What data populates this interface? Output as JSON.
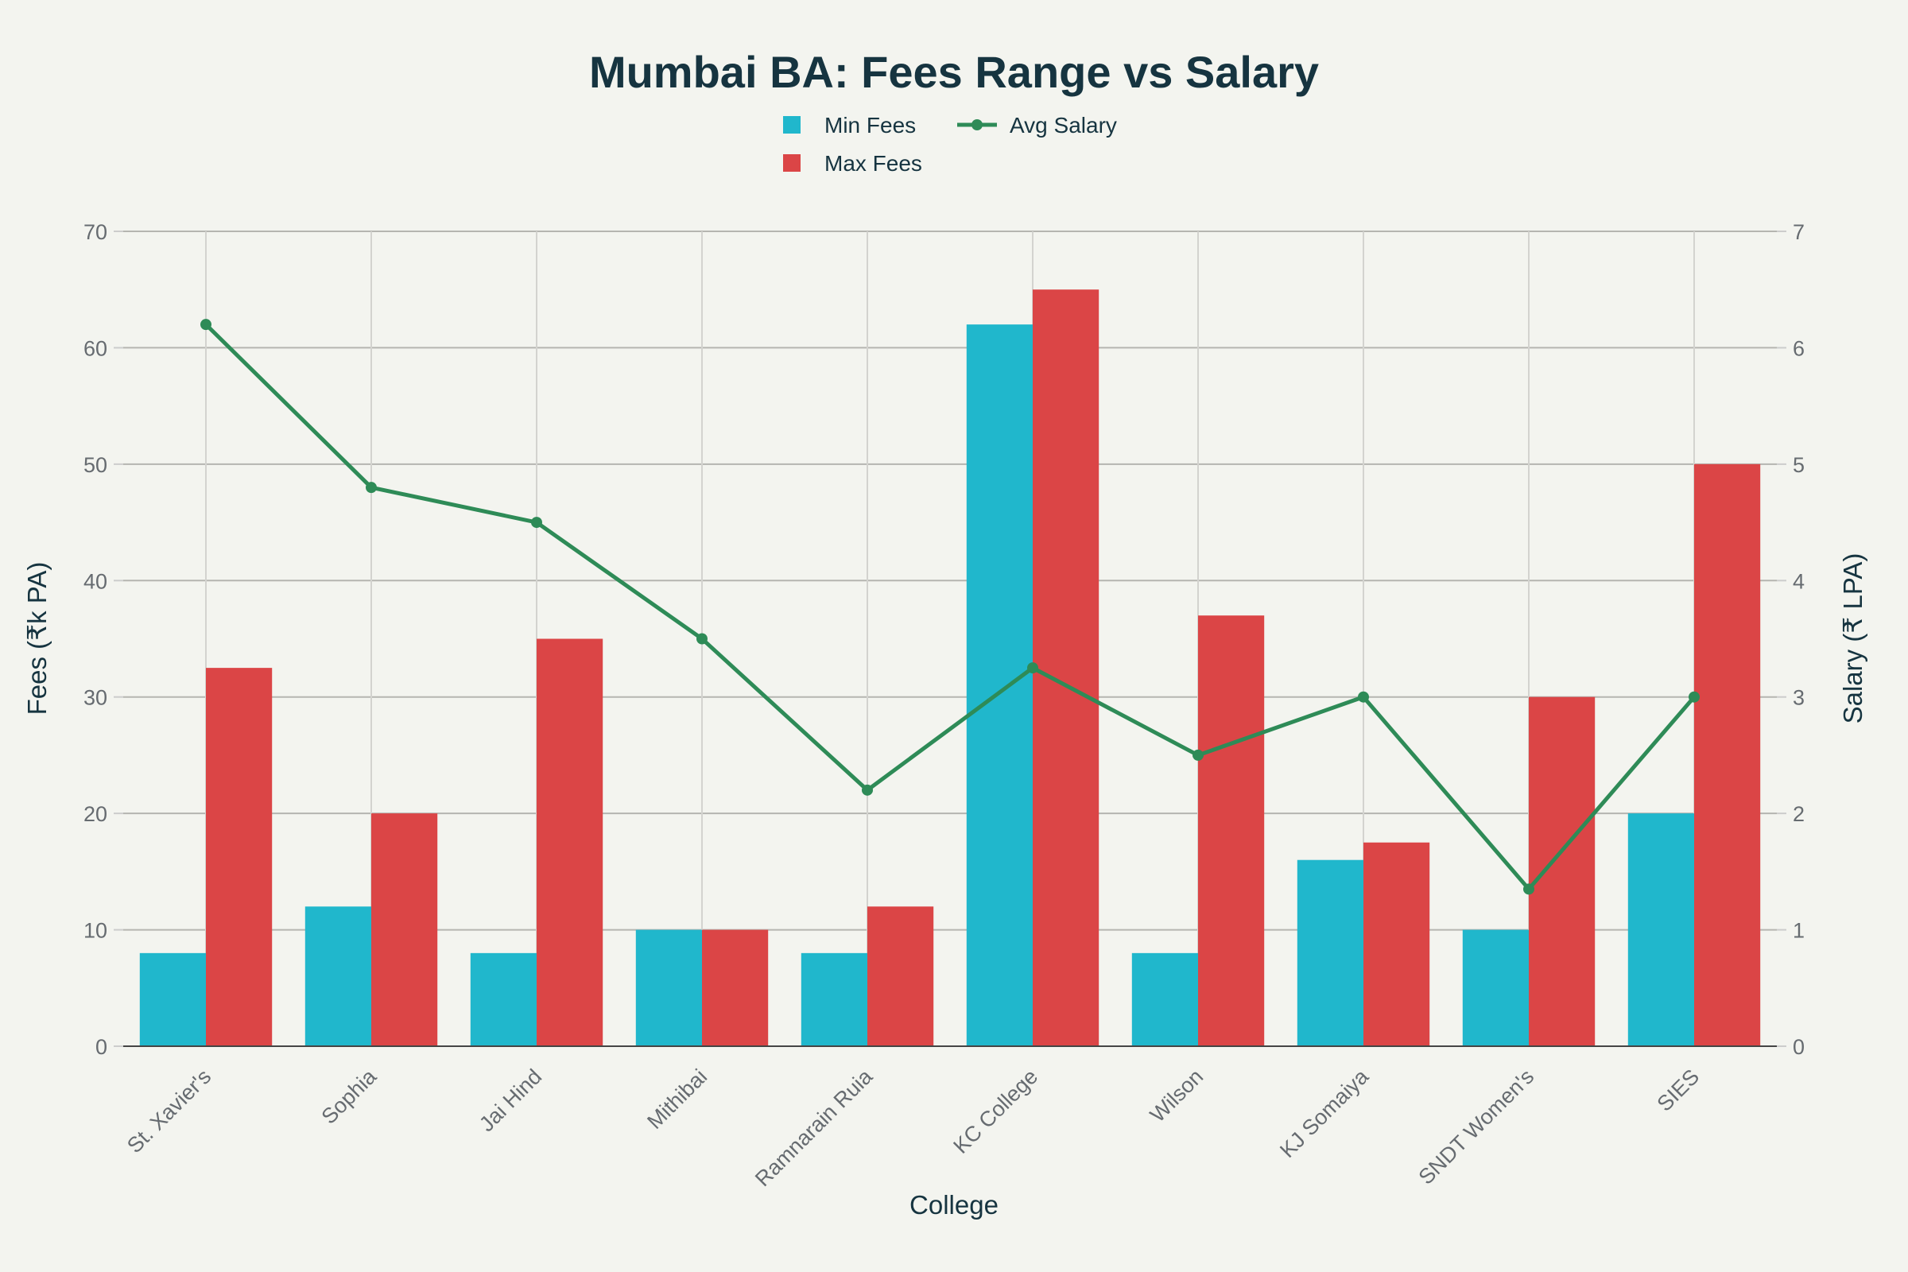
{
  "chart_data": {
    "type": "bar",
    "title": "Mumbai BA: Fees Range vs Salary",
    "xlabel": "College",
    "ylabel": "Fees (₹k PA)",
    "y2label": "Salary (₹ LPA)",
    "categories": [
      "St. Xavier's",
      "Sophia",
      "Jai Hind",
      "Mithibai",
      "Ramnarain Ruia",
      "KC College",
      "Wilson",
      "KJ Somaiya",
      "SNDT Women's",
      "SIES"
    ],
    "ylim": [
      0,
      70
    ],
    "y2lim": [
      0,
      7
    ],
    "yticks": [
      0,
      10,
      20,
      30,
      40,
      50,
      60,
      70
    ],
    "y2ticks": [
      0,
      1,
      2,
      3,
      4,
      5,
      6,
      7
    ],
    "grid": true,
    "legend_placement": "top-center",
    "series": [
      {
        "name": "Min Fees",
        "type": "bar",
        "axis": "left",
        "color": "#20b7cc",
        "values": [
          8,
          12,
          8,
          10,
          8,
          62,
          8,
          16,
          10,
          20
        ]
      },
      {
        "name": "Max Fees",
        "type": "bar",
        "axis": "left",
        "color": "#db4546",
        "values": [
          32.5,
          20,
          35,
          10,
          12,
          65,
          37,
          17.5,
          30,
          50
        ]
      },
      {
        "name": "Avg Salary",
        "type": "line",
        "axis": "right",
        "color": "#2e8b57",
        "values": [
          6.2,
          4.8,
          4.5,
          3.5,
          2.2,
          3.25,
          2.5,
          3.0,
          1.35,
          3.0
        ]
      }
    ]
  }
}
